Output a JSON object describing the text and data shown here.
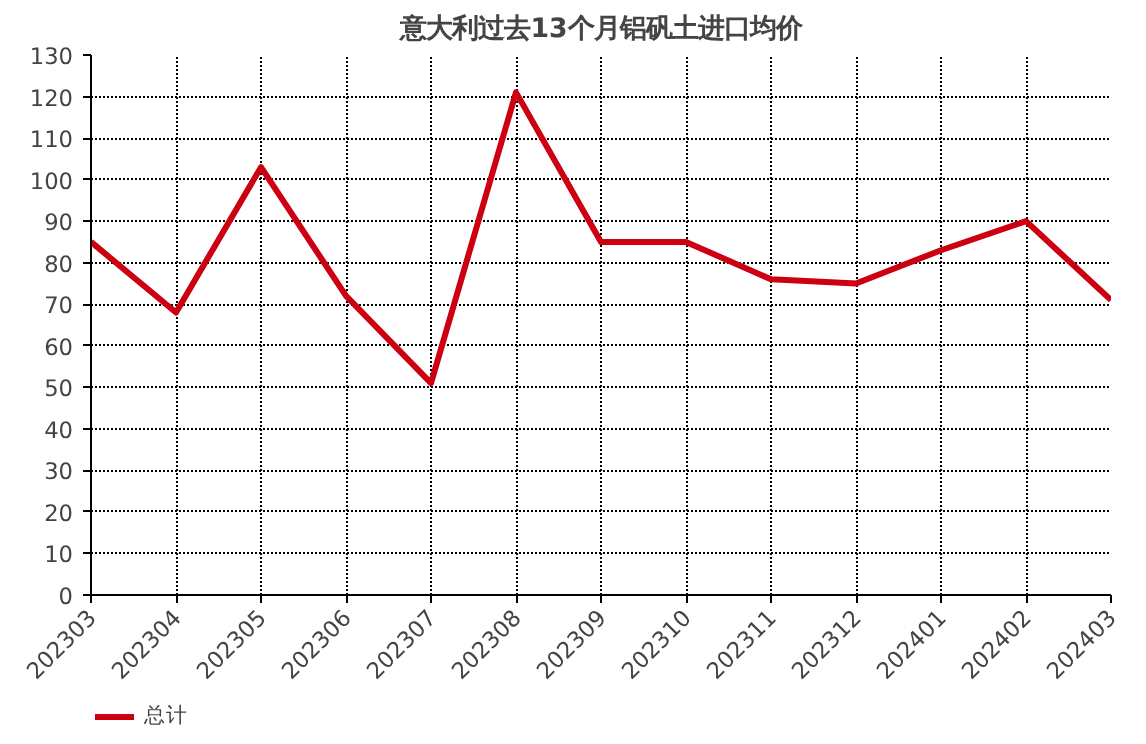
{
  "chart_data": {
    "type": "line",
    "title": "意大利过去13个月铝矾土进口均价",
    "categories": [
      "202303",
      "202304",
      "202305",
      "202306",
      "202307",
      "202308",
      "202309",
      "202310",
      "202311",
      "202312",
      "202401",
      "202402",
      "202403"
    ],
    "series": [
      {
        "name": "总计",
        "color": "#cc0011",
        "values": [
          85,
          68,
          103,
          72,
          51,
          121,
          85,
          85,
          76,
          75,
          83,
          90,
          71
        ]
      }
    ],
    "ylim": [
      0,
      130
    ],
    "yticks": [
      0,
      10,
      20,
      30,
      40,
      50,
      60,
      70,
      80,
      90,
      100,
      110,
      120,
      130
    ],
    "grid": true,
    "legend": "bottom left",
    "marker": "none",
    "line_style": "solid"
  }
}
